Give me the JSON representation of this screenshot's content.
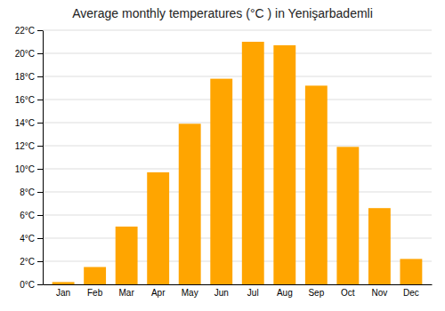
{
  "chart_data": {
    "type": "bar",
    "title": "Average monthly temperatures (°C ) in Yenişarbademli",
    "categories": [
      "Jan",
      "Feb",
      "Mar",
      "Apr",
      "May",
      "Jun",
      "Jul",
      "Aug",
      "Sep",
      "Oct",
      "Nov",
      "Dec"
    ],
    "values": [
      0.2,
      1.5,
      5.0,
      9.7,
      13.9,
      17.8,
      21.0,
      20.7,
      17.2,
      11.9,
      6.6,
      2.2
    ],
    "color": "#FFA500",
    "ylim": [
      0,
      22
    ],
    "yticks": [
      {
        "value": 0,
        "label": "0°C"
      },
      {
        "value": 2,
        "label": "2°C"
      },
      {
        "value": 4,
        "label": "4°C"
      },
      {
        "value": 6,
        "label": "6°C"
      },
      {
        "value": 8,
        "label": "8°C"
      },
      {
        "value": 10,
        "label": "10°C"
      },
      {
        "value": 12,
        "label": "12°C"
      },
      {
        "value": 14,
        "label": "14°C"
      },
      {
        "value": 16,
        "label": "16°C"
      },
      {
        "value": 18,
        "label": "18°C"
      },
      {
        "value": 20,
        "label": "20°C"
      },
      {
        "value": 22,
        "label": "22°C"
      }
    ],
    "grid": true
  }
}
